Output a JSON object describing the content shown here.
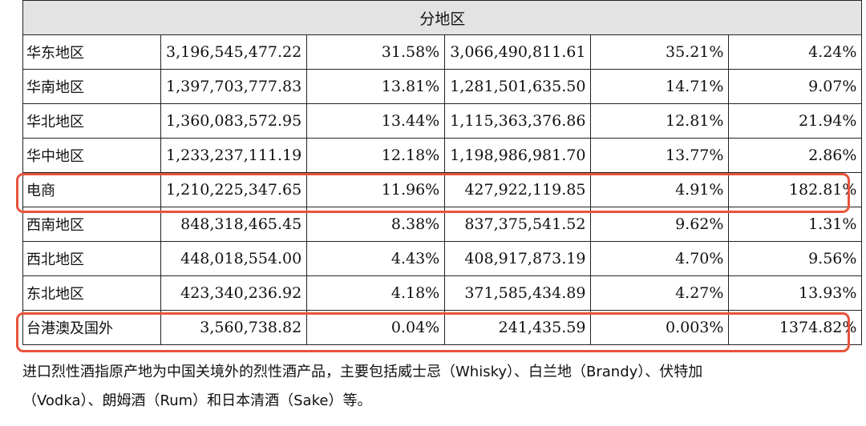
{
  "table": {
    "header": "分地区",
    "rows": [
      {
        "region": "华东地区",
        "revenue_current": "3,196,545,477.22",
        "share_current": "31.58%",
        "revenue_prior": "3,066,490,811.61",
        "share_prior": "35.21%",
        "growth": "4.24%"
      },
      {
        "region": "华南地区",
        "revenue_current": "1,397,703,777.83",
        "share_current": "13.81%",
        "revenue_prior": "1,281,501,635.50",
        "share_prior": "14.71%",
        "growth": "9.07%"
      },
      {
        "region": "华北地区",
        "revenue_current": "1,360,083,572.95",
        "share_current": "13.44%",
        "revenue_prior": "1,115,363,376.86",
        "share_prior": "12.81%",
        "growth": "21.94%"
      },
      {
        "region": "华中地区",
        "revenue_current": "1,233,237,111.19",
        "share_current": "12.18%",
        "revenue_prior": "1,198,986,981.70",
        "share_prior": "13.77%",
        "growth": "2.86%"
      },
      {
        "region": "电商",
        "revenue_current": "1,210,225,347.65",
        "share_current": "11.96%",
        "revenue_prior": "427,922,119.85",
        "share_prior": "4.91%",
        "growth": "182.81%"
      },
      {
        "region": "西南地区",
        "revenue_current": "848,318,465.45",
        "share_current": "8.38%",
        "revenue_prior": "837,375,541.52",
        "share_prior": "9.62%",
        "growth": "1.31%"
      },
      {
        "region": "西北地区",
        "revenue_current": "448,018,554.00",
        "share_current": "4.43%",
        "revenue_prior": "408,917,873.19",
        "share_prior": "4.70%",
        "growth": "9.56%"
      },
      {
        "region": "东北地区",
        "revenue_current": "423,340,236.92",
        "share_current": "4.18%",
        "revenue_prior": "371,585,434.89",
        "share_prior": "4.27%",
        "growth": "13.93%"
      },
      {
        "region": "台港澳及国外",
        "revenue_current": "3,560,738.82",
        "share_current": "0.04%",
        "revenue_prior": "241,435.59",
        "share_prior": "0.003%",
        "growth": "1374.82%"
      }
    ]
  },
  "highlight_color": "#e8533b",
  "highlighted_rows": [
    "电商",
    "台港澳及国外"
  ],
  "footnote": {
    "line1": "进口烈性酒指原产地为中国关境外的烈性酒产品，主要包括威士忌（Whisky）、白兰地（Brandy）、伏特加",
    "line2": "（Vodka）、朗姆酒（Rum）和日本清酒（Sake）等。"
  }
}
